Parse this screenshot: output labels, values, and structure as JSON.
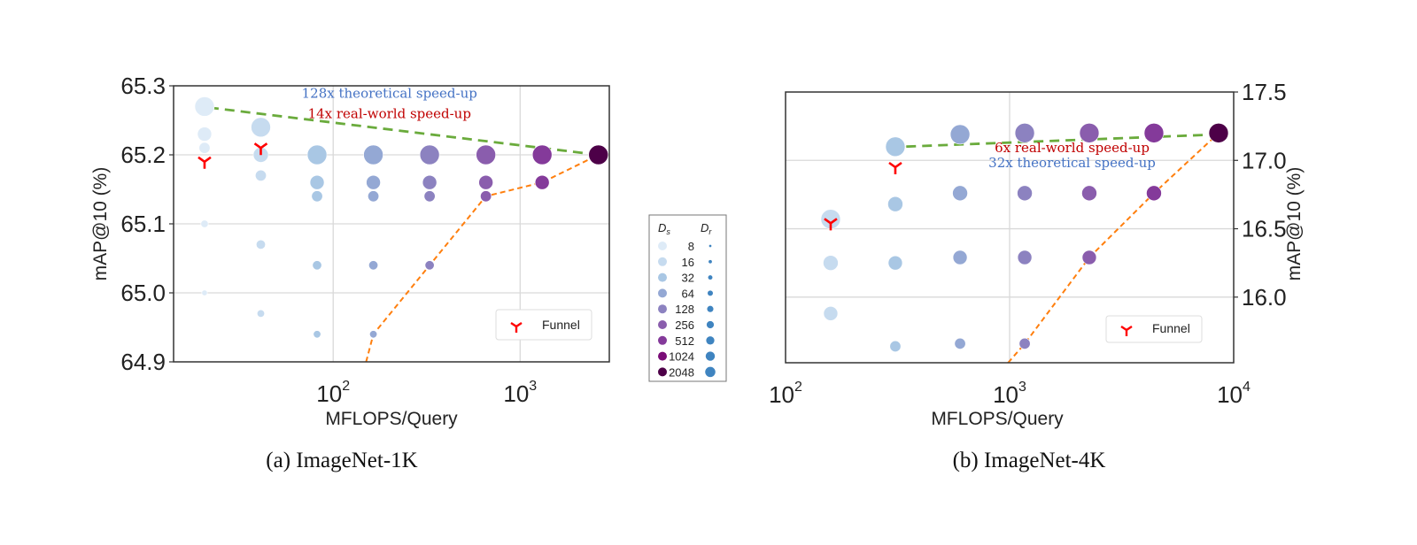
{
  "chart_data": [
    {
      "type": "scatter",
      "panel": "left",
      "caption": "(a) ImageNet-1K",
      "xlabel": "MFLOPS/Query",
      "ylabel": "mAP@10 (%)",
      "xscale": "log",
      "xlim": [
        14,
        3000
      ],
      "ylim": [
        64.9,
        65.3
      ],
      "yticks": [
        "65.3",
        "65.2",
        "65.1",
        "65.0",
        "64.9"
      ],
      "ytick_values": [
        65.3,
        65.2,
        65.1,
        65.0,
        64.9
      ],
      "xticks": [
        {
          "base": "10",
          "exp": "2",
          "value": 100
        },
        {
          "base": "10",
          "exp": "3",
          "value": 1000
        }
      ],
      "grid": true,
      "yaxis_side": "left",
      "points": [
        {
          "x": 20.5,
          "y": 65.27,
          "ds": 8,
          "dr": 2048
        },
        {
          "x": 20.5,
          "y": 65.23,
          "ds": 8,
          "dr": 512
        },
        {
          "x": 20.5,
          "y": 65.21,
          "ds": 8,
          "dr": 256
        },
        {
          "x": 20.5,
          "y": 65.1,
          "ds": 8,
          "dr": 32
        },
        {
          "x": 20.5,
          "y": 65.0,
          "ds": 8,
          "dr": 16
        },
        {
          "x": 41,
          "y": 65.24,
          "ds": 16,
          "dr": 2048
        },
        {
          "x": 41,
          "y": 65.2,
          "ds": 16,
          "dr": 1024
        },
        {
          "x": 41,
          "y": 65.17,
          "ds": 16,
          "dr": 256
        },
        {
          "x": 41,
          "y": 65.07,
          "ds": 16,
          "dr": 64
        },
        {
          "x": 41,
          "y": 64.97,
          "ds": 16,
          "dr": 32
        },
        {
          "x": 82,
          "y": 65.2,
          "ds": 32,
          "dr": 2048
        },
        {
          "x": 82,
          "y": 65.16,
          "ds": 32,
          "dr": 512
        },
        {
          "x": 82,
          "y": 65.14,
          "ds": 32,
          "dr": 256
        },
        {
          "x": 82,
          "y": 65.04,
          "ds": 32,
          "dr": 64
        },
        {
          "x": 82,
          "y": 64.94,
          "ds": 32,
          "dr": 32
        },
        {
          "x": 164,
          "y": 65.2,
          "ds": 64,
          "dr": 2048
        },
        {
          "x": 164,
          "y": 65.16,
          "ds": 64,
          "dr": 512
        },
        {
          "x": 164,
          "y": 65.14,
          "ds": 64,
          "dr": 256
        },
        {
          "x": 164,
          "y": 65.04,
          "ds": 64,
          "dr": 64
        },
        {
          "x": 164,
          "y": 64.94,
          "ds": 64,
          "dr": 32
        },
        {
          "x": 328,
          "y": 65.2,
          "ds": 128,
          "dr": 2048
        },
        {
          "x": 328,
          "y": 65.16,
          "ds": 128,
          "dr": 512
        },
        {
          "x": 328,
          "y": 65.14,
          "ds": 128,
          "dr": 256
        },
        {
          "x": 328,
          "y": 65.04,
          "ds": 128,
          "dr": 64
        },
        {
          "x": 656,
          "y": 65.2,
          "ds": 256,
          "dr": 2048
        },
        {
          "x": 656,
          "y": 65.16,
          "ds": 256,
          "dr": 512
        },
        {
          "x": 656,
          "y": 65.14,
          "ds": 256,
          "dr": 256
        },
        {
          "x": 1312,
          "y": 65.2,
          "ds": 512,
          "dr": 2048
        },
        {
          "x": 1312,
          "y": 65.16,
          "ds": 512,
          "dr": 512
        },
        {
          "x": 2624,
          "y": 65.2,
          "ds": 2048,
          "dr": 2048
        }
      ],
      "funnel": [
        {
          "x": 20.5,
          "y": 65.19
        },
        {
          "x": 41,
          "y": 65.21
        }
      ],
      "frontier": [
        {
          "x": 150,
          "y": 64.89
        },
        {
          "x": 164,
          "y": 64.94
        },
        {
          "x": 328,
          "y": 65.04
        },
        {
          "x": 656,
          "y": 65.14
        },
        {
          "x": 1312,
          "y": 65.16
        },
        {
          "x": 2624,
          "y": 65.2
        }
      ],
      "arrow": {
        "from": {
          "x": 2624,
          "y": 65.2
        },
        "to": {
          "x": 22.5,
          "y": 65.268
        }
      },
      "annotations": [
        {
          "text": "128x theoretical speed-up",
          "color": "#4472c4",
          "x": 200,
          "y": 65.283
        },
        {
          "text": "14x real-world speed-up",
          "color": "#c00000",
          "x": 200,
          "y": 65.253
        }
      ],
      "legend": {
        "label": "Funnel",
        "position": "lower-right"
      }
    },
    {
      "type": "scatter",
      "panel": "right",
      "caption": "(b) ImageNet-4K",
      "xlabel": "MFLOPS/Query",
      "ylabel": "mAP@10 (%)",
      "xscale": "log",
      "xlim": [
        100,
        10000
      ],
      "ylim": [
        15.52,
        17.5
      ],
      "yticks": [
        "17.5",
        "17.0",
        "16.5",
        "16.0"
      ],
      "ytick_values": [
        17.5,
        17.0,
        16.5,
        16.0
      ],
      "xticks": [
        {
          "base": "10",
          "exp": "2",
          "value": 100
        },
        {
          "base": "10",
          "exp": "3",
          "value": 1000
        },
        {
          "base": "10",
          "exp": "4",
          "value": 10000
        }
      ],
      "grid": true,
      "yaxis_side": "right",
      "points": [
        {
          "x": 159,
          "y": 16.57,
          "ds": 16,
          "dr": 2048
        },
        {
          "x": 159,
          "y": 16.25,
          "ds": 16,
          "dr": 1024
        },
        {
          "x": 159,
          "y": 15.88,
          "ds": 16,
          "dr": 512
        },
        {
          "x": 309,
          "y": 17.1,
          "ds": 32,
          "dr": 2048
        },
        {
          "x": 309,
          "y": 16.68,
          "ds": 32,
          "dr": 1024
        },
        {
          "x": 309,
          "y": 16.25,
          "ds": 32,
          "dr": 512
        },
        {
          "x": 309,
          "y": 15.64,
          "ds": 32,
          "dr": 256
        },
        {
          "x": 601,
          "y": 17.19,
          "ds": 64,
          "dr": 2048
        },
        {
          "x": 601,
          "y": 16.76,
          "ds": 64,
          "dr": 1024
        },
        {
          "x": 601,
          "y": 16.29,
          "ds": 64,
          "dr": 512
        },
        {
          "x": 601,
          "y": 15.66,
          "ds": 64,
          "dr": 256
        },
        {
          "x": 1168,
          "y": 17.2,
          "ds": 128,
          "dr": 2048
        },
        {
          "x": 1168,
          "y": 16.76,
          "ds": 128,
          "dr": 1024
        },
        {
          "x": 1168,
          "y": 16.29,
          "ds": 128,
          "dr": 512
        },
        {
          "x": 1168,
          "y": 15.66,
          "ds": 128,
          "dr": 256
        },
        {
          "x": 2268,
          "y": 17.2,
          "ds": 256,
          "dr": 2048
        },
        {
          "x": 2268,
          "y": 16.76,
          "ds": 256,
          "dr": 1024
        },
        {
          "x": 2268,
          "y": 16.29,
          "ds": 256,
          "dr": 512
        },
        {
          "x": 4407,
          "y": 17.2,
          "ds": 512,
          "dr": 2048
        },
        {
          "x": 4407,
          "y": 16.76,
          "ds": 512,
          "dr": 1024
        },
        {
          "x": 8566,
          "y": 17.2,
          "ds": 2048,
          "dr": 2048
        }
      ],
      "funnel": [
        {
          "x": 159,
          "y": 16.54
        },
        {
          "x": 309,
          "y": 16.95
        }
      ],
      "frontier": [
        {
          "x": 985,
          "y": 15.52
        },
        {
          "x": 1168,
          "y": 15.66
        },
        {
          "x": 2268,
          "y": 16.29
        },
        {
          "x": 4407,
          "y": 16.76
        },
        {
          "x": 8566,
          "y": 17.2
        }
      ],
      "arrow": {
        "from": {
          "x": 8566,
          "y": 17.19
        },
        "to": {
          "x": 335,
          "y": 17.1
        }
      },
      "annotations": [
        {
          "text": "6x real-world speed-up",
          "color": "#c00000",
          "x": 1900,
          "y": 17.06
        },
        {
          "text": "32x theoretical speed-up",
          "color": "#4472c4",
          "x": 1900,
          "y": 16.95
        }
      ],
      "legend": {
        "label": "Funnel",
        "position": "lower-right"
      }
    }
  ],
  "size_legend": {
    "ds_title": "D",
    "ds_sub": "s",
    "dr_title": "D",
    "dr_sub": "r",
    "entries": [
      {
        "label": "8",
        "ds_color": "#deebf7",
        "dr_size": 1
      },
      {
        "label": "16",
        "ds_color": "#c6dbef",
        "dr_size": 2
      },
      {
        "label": "32",
        "ds_color": "#a9c7e4",
        "dr_size": 3
      },
      {
        "label": "64",
        "ds_color": "#94a8d4",
        "dr_size": 4
      },
      {
        "label": "128",
        "ds_color": "#8c82c0",
        "dr_size": 5
      },
      {
        "label": "256",
        "ds_color": "#8a5dad",
        "dr_size": 6
      },
      {
        "label": "512",
        "ds_color": "#843a9a",
        "dr_size": 7
      },
      {
        "label": "1024",
        "ds_color": "#7a0c77",
        "dr_size": 8
      },
      {
        "label": "2048",
        "ds_color": "#4d0048",
        "dr_size": 9
      }
    ]
  },
  "colors": {
    "arrow": "#6aab3c",
    "frontier": "#ff7f0e",
    "funnel": "#ff0000",
    "grid": "#d9d9d9",
    "dr_dot": "#3f84c0"
  }
}
